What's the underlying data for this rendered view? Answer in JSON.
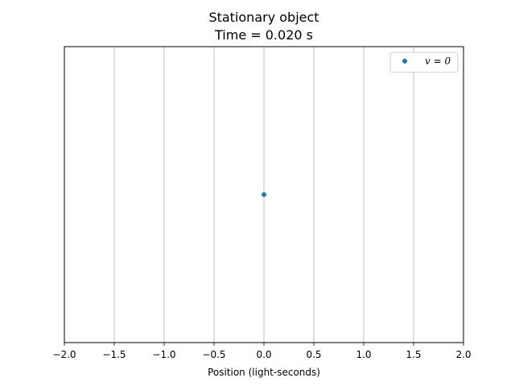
{
  "chart_data": {
    "type": "scatter",
    "title_line1": "Stationary object",
    "title_line2": "Time = 0.020 s",
    "xlabel": "Position (light-seconds)",
    "ylabel": "",
    "xlim": [
      -2.0,
      2.0
    ],
    "ylim": [
      -1,
      1
    ],
    "x_ticks": [
      -2.0,
      -1.5,
      -1.0,
      -0.5,
      0.0,
      0.5,
      1.0,
      1.5,
      2.0
    ],
    "x_tick_labels": [
      "−2.0",
      "−1.5",
      "−1.0",
      "−0.5",
      "0.0",
      "0.5",
      "1.0",
      "1.5",
      "2.0"
    ],
    "y_ticks_visible": false,
    "grid": "x-axis",
    "legend_position": "top-right",
    "series": [
      {
        "name": "v = 0",
        "color": "#1f77b4",
        "points": [
          {
            "x": 0.0,
            "y": 0.0
          }
        ]
      }
    ]
  }
}
